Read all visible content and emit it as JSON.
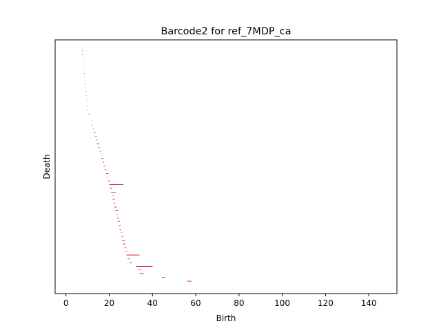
{
  "chart_data": {
    "type": "barcode",
    "title": "Barcode2 for ref_7MDP_ca",
    "xlabel": "Birth",
    "ylabel": "Death",
    "xlim": [
      -5,
      153
    ],
    "xticks": [
      0,
      20,
      40,
      60,
      80,
      100,
      120,
      140
    ],
    "xtick_labels": [
      "0",
      "20",
      "40",
      "60",
      "80",
      "100",
      "120",
      "140"
    ],
    "bar_color": "#d62728",
    "bars_ordered_top_to_bottom": [
      [
        7.5,
        7.8
      ],
      [
        7.6,
        7.9
      ],
      [
        7.8,
        8.1
      ],
      [
        8.0,
        8.2
      ],
      [
        8.2,
        8.4
      ],
      [
        8.3,
        8.5
      ],
      [
        8.4,
        8.6
      ],
      [
        8.5,
        8.7
      ],
      [
        8.6,
        8.8
      ],
      [
        8.7,
        8.9
      ],
      [
        8.8,
        9.0
      ],
      [
        9.0,
        9.2
      ],
      [
        9.2,
        9.4
      ],
      [
        9.4,
        9.6
      ],
      [
        9.6,
        9.8
      ],
      [
        9.8,
        10.0
      ],
      [
        10.0,
        10.2
      ],
      [
        10.5,
        10.8
      ],
      [
        11.0,
        11.3
      ],
      [
        11.5,
        11.8
      ],
      [
        12.0,
        12.4
      ],
      [
        12.5,
        12.9
      ],
      [
        13.0,
        13.6
      ],
      [
        13.5,
        14.3
      ],
      [
        14.0,
        14.6
      ],
      [
        14.5,
        15.2
      ],
      [
        15.0,
        15.6
      ],
      [
        15.5,
        16.0
      ],
      [
        16.0,
        16.5
      ],
      [
        16.5,
        17.2
      ],
      [
        17.0,
        17.6
      ],
      [
        17.5,
        18.2
      ],
      [
        18.0,
        18.6
      ],
      [
        18.5,
        19.5
      ],
      [
        19.0,
        19.6
      ],
      [
        19.5,
        20.3
      ],
      [
        20.0,
        26.5
      ],
      [
        20.3,
        21.5
      ],
      [
        20.8,
        23.0
      ],
      [
        21.2,
        22.0
      ],
      [
        21.6,
        22.6
      ],
      [
        22.0,
        22.8
      ],
      [
        22.4,
        23.5
      ],
      [
        22.8,
        24.0
      ],
      [
        23.2,
        24.5
      ],
      [
        23.6,
        24.3
      ],
      [
        24.0,
        25.0
      ],
      [
        24.4,
        25.2
      ],
      [
        24.8,
        25.6
      ],
      [
        25.2,
        26.2
      ],
      [
        25.6,
        26.6
      ],
      [
        26.0,
        27.0
      ],
      [
        26.5,
        27.5
      ],
      [
        27.0,
        28.0
      ],
      [
        27.5,
        28.5
      ],
      [
        28.0,
        34.0
      ],
      [
        28.5,
        29.5
      ],
      [
        29.5,
        30.5
      ],
      [
        32.5,
        40.0
      ],
      [
        33.0,
        35.0
      ],
      [
        34.0,
        36.0
      ],
      [
        44.5,
        45.5
      ],
      [
        56.0,
        58.0
      ]
    ]
  }
}
